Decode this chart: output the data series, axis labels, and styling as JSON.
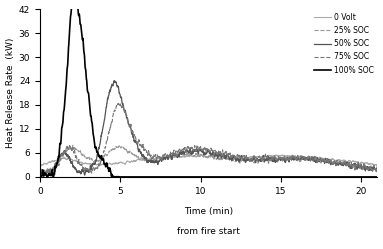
{
  "title": "",
  "xlabel": "Time (min)",
  "xlabel2": "from fire start",
  "ylabel": "Heat Release Rate  (kW)",
  "xlim": [
    0,
    21
  ],
  "ylim": [
    0,
    42
  ],
  "yticks": [
    0,
    6,
    12,
    18,
    24,
    30,
    36,
    42
  ],
  "xticks": [
    0,
    5,
    10,
    15,
    20
  ],
  "legend": [
    {
      "label": "0 Volt",
      "color": "#aaaaaa",
      "ls": "-",
      "lw": 0.8
    },
    {
      "label": "25% SOC",
      "color": "#999999",
      "ls": "--",
      "lw": 0.8
    },
    {
      "label": "50% SOC",
      "color": "#555555",
      "ls": "-",
      "lw": 0.9
    },
    {
      "label": "75% SOC",
      "color": "#777777",
      "ls": "--",
      "lw": 0.8
    },
    {
      "label": "100% SOC",
      "color": "#000000",
      "ls": "-",
      "lw": 1.2
    }
  ],
  "background": "#ffffff",
  "figsize": [
    3.83,
    2.49
  ],
  "dpi": 100
}
